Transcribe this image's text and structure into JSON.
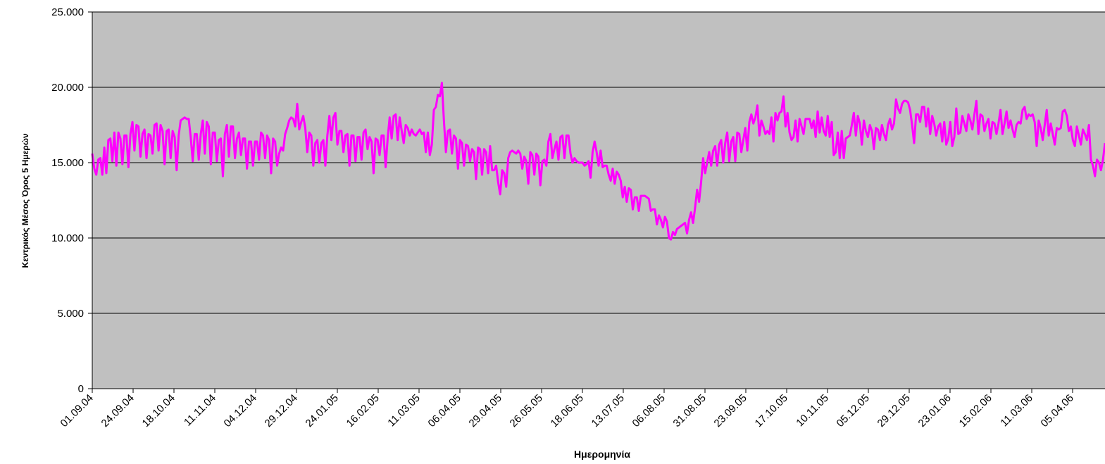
{
  "chart_data": {
    "type": "line",
    "xlabel": "Ημερομηνία",
    "ylabel": "Κεντρικός Μέσος Όρος 5 Ημερών",
    "ylim": [
      0,
      25000
    ],
    "yticks": [
      {
        "value": 0,
        "label": "0"
      },
      {
        "value": 5000,
        "label": "5.000"
      },
      {
        "value": 10000,
        "label": "10.000"
      },
      {
        "value": 15000,
        "label": "15.000"
      },
      {
        "value": 20000,
        "label": "20.000"
      },
      {
        "value": 25000,
        "label": "25.000"
      }
    ],
    "xtick_labels": [
      "01.09.04",
      "24.09.04",
      "18.10.04",
      "11.11.04",
      "04.12.04",
      "29.12.04",
      "24.01.05",
      "16.02.05",
      "11.03.05",
      "06.04.05",
      "29.04.05",
      "26.05.05",
      "18.06.05",
      "13.07.05",
      "06.08.05",
      "31.08.05",
      "23.09.05",
      "17.10.05",
      "10.11.05",
      "05.12.05",
      "29.12.05",
      "23.01.06",
      "15.02.06",
      "11.03.06",
      "05.04.06"
    ],
    "grid": true,
    "plot_background": "#c0c0c0",
    "line_color": "#ff00ff",
    "series": [
      {
        "values": [
          15600,
          14600,
          14200,
          15200,
          15300,
          14200,
          16000,
          14300,
          16500,
          16600,
          15100,
          17000,
          14800,
          17000,
          16600,
          14900,
          16800,
          16800,
          14700,
          16900,
          17700,
          15800,
          17500,
          17400,
          15400,
          16900,
          17200,
          15300,
          16900,
          16800,
          15600,
          17500,
          17600,
          15800,
          17500,
          17100,
          14900,
          17100,
          17200,
          15300,
          17100,
          16700,
          14500,
          16800,
          17800,
          17900,
          18000,
          17900,
          17900,
          16700,
          15100,
          16900,
          16900,
          15200,
          16900,
          17800,
          15600,
          17700,
          17400,
          14900,
          17000,
          17000,
          15100,
          16500,
          16600,
          14100,
          16900,
          17500,
          15400,
          17400,
          17400,
          15300,
          16600,
          17000,
          15500,
          16600,
          16600,
          14600,
          16400,
          16400,
          14800,
          16400,
          16400,
          15200,
          17000,
          16800,
          15300,
          16800,
          16500,
          14300,
          16600,
          16400,
          14800,
          15600,
          16000,
          15800,
          16900,
          17300,
          17800,
          18000,
          17900,
          17400,
          18900,
          17200,
          17700,
          18100,
          17300,
          15700,
          17000,
          16800,
          14800,
          16300,
          16500,
          15000,
          16300,
          16500,
          14800,
          16800,
          18100,
          16500,
          18000,
          18300,
          16200,
          17100,
          17100,
          15700,
          16800,
          16900,
          14800,
          16800,
          16800,
          15100,
          16700,
          16700,
          15200,
          17000,
          17200,
          15900,
          16700,
          16400,
          14300,
          16600,
          16500,
          15500,
          16800,
          16800,
          14700,
          16600,
          18000,
          16600,
          18100,
          18200,
          16500,
          18000,
          17100,
          16300,
          17500,
          17300,
          16800,
          17200,
          16900,
          16800,
          17000,
          17200,
          16900,
          17000,
          15700,
          17000,
          15500,
          16200,
          18500,
          18700,
          19500,
          19400,
          20300,
          17800,
          15700,
          17100,
          17200,
          15600,
          16800,
          16600,
          14600,
          16500,
          16300,
          14800,
          16200,
          16100,
          15100,
          15900,
          15700,
          13900,
          16000,
          15900,
          14200,
          15900,
          15700,
          14300,
          16100,
          14500,
          14500,
          14800,
          13700,
          12900,
          14500,
          14300,
          13400,
          15300,
          15700,
          15800,
          15700,
          15600,
          15800,
          15600,
          14600,
          15400,
          15100,
          13600,
          15700,
          15500,
          14200,
          15600,
          15400,
          13500,
          15100,
          15200,
          14800,
          16400,
          16900,
          15300,
          15900,
          16400,
          15200,
          16700,
          16800,
          15300,
          16800,
          16800,
          15600,
          15000,
          15300,
          15100,
          15000,
          15000,
          15000,
          14800,
          14900,
          15100,
          14000,
          15700,
          16400,
          15700,
          14800,
          15800,
          14700,
          14800,
          14800,
          14200,
          13800,
          14600,
          13600,
          14400,
          14200,
          13800,
          12700,
          13400,
          12400,
          13300,
          13200,
          11900,
          12700,
          12700,
          11800,
          12800,
          12800,
          12800,
          12700,
          12600,
          11800,
          11900,
          11900,
          10900,
          11500,
          11200,
          10700,
          11400,
          11100,
          10000,
          9900,
          10400,
          10200,
          10600,
          10700,
          10800,
          10900,
          11000,
          10300,
          11200,
          11700,
          11000,
          12000,
          13200,
          12400,
          13700,
          15300,
          14300,
          15000,
          15700,
          14800,
          15800,
          16100,
          14800,
          16200,
          16500,
          15000,
          16300,
          17000,
          15100,
          16400,
          16700,
          15100,
          17000,
          16900,
          15700,
          16500,
          17300,
          15800,
          17700,
          18200,
          17600,
          18000,
          18800,
          16800,
          17800,
          17400,
          16900,
          17100,
          16900,
          18000,
          16400,
          18300,
          17800,
          18300,
          18400,
          19400,
          17400,
          18300,
          17000,
          16500,
          16700,
          17800,
          16400,
          17900,
          17400,
          16900,
          17900,
          17900,
          17900,
          17300,
          17800,
          16700,
          18400,
          17000,
          18000,
          17100,
          16800,
          18100,
          16700,
          17700,
          15500,
          15700,
          17000,
          15300,
          17100,
          15300,
          16600,
          16700,
          16800,
          17500,
          18300,
          16800,
          18100,
          17600,
          16200,
          17800,
          17100,
          16700,
          17500,
          17100,
          15900,
          17300,
          17200,
          16500,
          17500,
          16900,
          16500,
          17500,
          17900,
          17200,
          17600,
          19200,
          18600,
          18300,
          18900,
          19100,
          19100,
          19000,
          18500,
          17500,
          16300,
          18200,
          18200,
          17700,
          18700,
          18700,
          17400,
          18600,
          16900,
          18100,
          17600,
          16800,
          17400,
          17600,
          16400,
          17700,
          16200,
          16600,
          17700,
          16100,
          16700,
          18600,
          16900,
          17000,
          18100,
          17600,
          17100,
          18200,
          17800,
          17200,
          18200,
          19100,
          16900,
          18200,
          18100,
          17100,
          17600,
          17900,
          16600,
          17700,
          17600,
          16900,
          17600,
          18500,
          16900,
          17600,
          18400,
          17300,
          17800,
          17200,
          16700,
          17500,
          17700,
          17600,
          18500,
          18700,
          17900,
          18200,
          18100,
          18200,
          17700,
          16100,
          17800,
          17300,
          16500,
          17500,
          18500,
          16800,
          17600,
          16900,
          16200,
          17300,
          17200,
          17300,
          18400,
          18500,
          18100,
          17100,
          17400,
          16500,
          16100,
          17400,
          16800,
          16200,
          17200,
          16900,
          16500,
          17500,
          15200,
          14800,
          14100,
          15200,
          15000,
          14500,
          15200,
          16300
        ]
      }
    ]
  }
}
